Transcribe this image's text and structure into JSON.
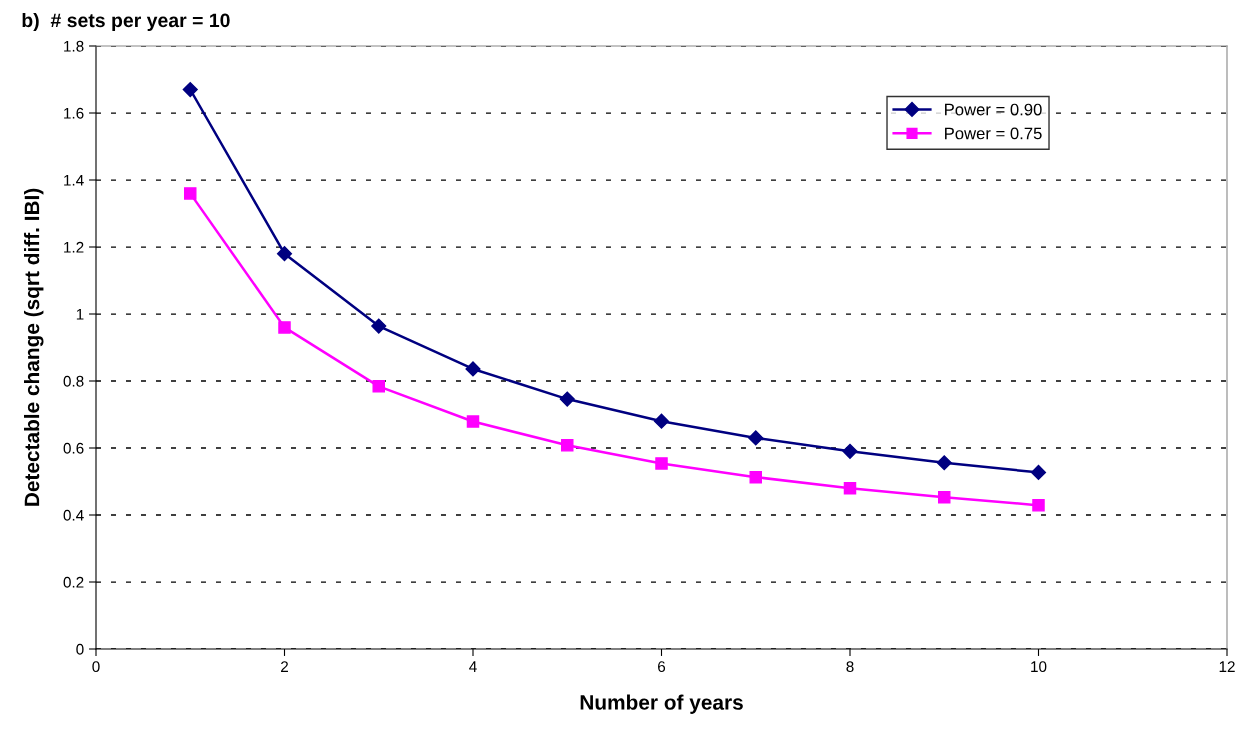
{
  "chart_data": {
    "type": "line",
    "title": "b)  # sets per year = 10",
    "xlabel": "Number of years",
    "ylabel": "Detectable change (sqrt diff. IBI)",
    "x": [
      1,
      2,
      3,
      4,
      5,
      6,
      7,
      8,
      9,
      10
    ],
    "series": [
      {
        "name": "Power = 0.90",
        "color": "#000080",
        "marker": "diamond",
        "values": [
          1.67,
          1.18,
          0.964,
          0.836,
          0.746,
          0.68,
          0.63,
          0.59,
          0.556,
          0.527
        ]
      },
      {
        "name": "Power = 0.75",
        "color": "#ff00ff",
        "marker": "square",
        "values": [
          1.36,
          0.96,
          0.784,
          0.679,
          0.608,
          0.554,
          0.513,
          0.48,
          0.453,
          0.429
        ]
      }
    ],
    "xlim": [
      0,
      12
    ],
    "xticks": [
      0,
      2,
      4,
      6,
      8,
      10,
      12
    ],
    "ylim": [
      0,
      1.8
    ],
    "yticks": [
      0,
      0.2,
      0.4,
      0.6,
      0.8,
      1,
      1.2,
      1.4,
      1.6,
      1.8
    ],
    "grid": "y",
    "legend": "top right",
    "line_style": "solid"
  }
}
